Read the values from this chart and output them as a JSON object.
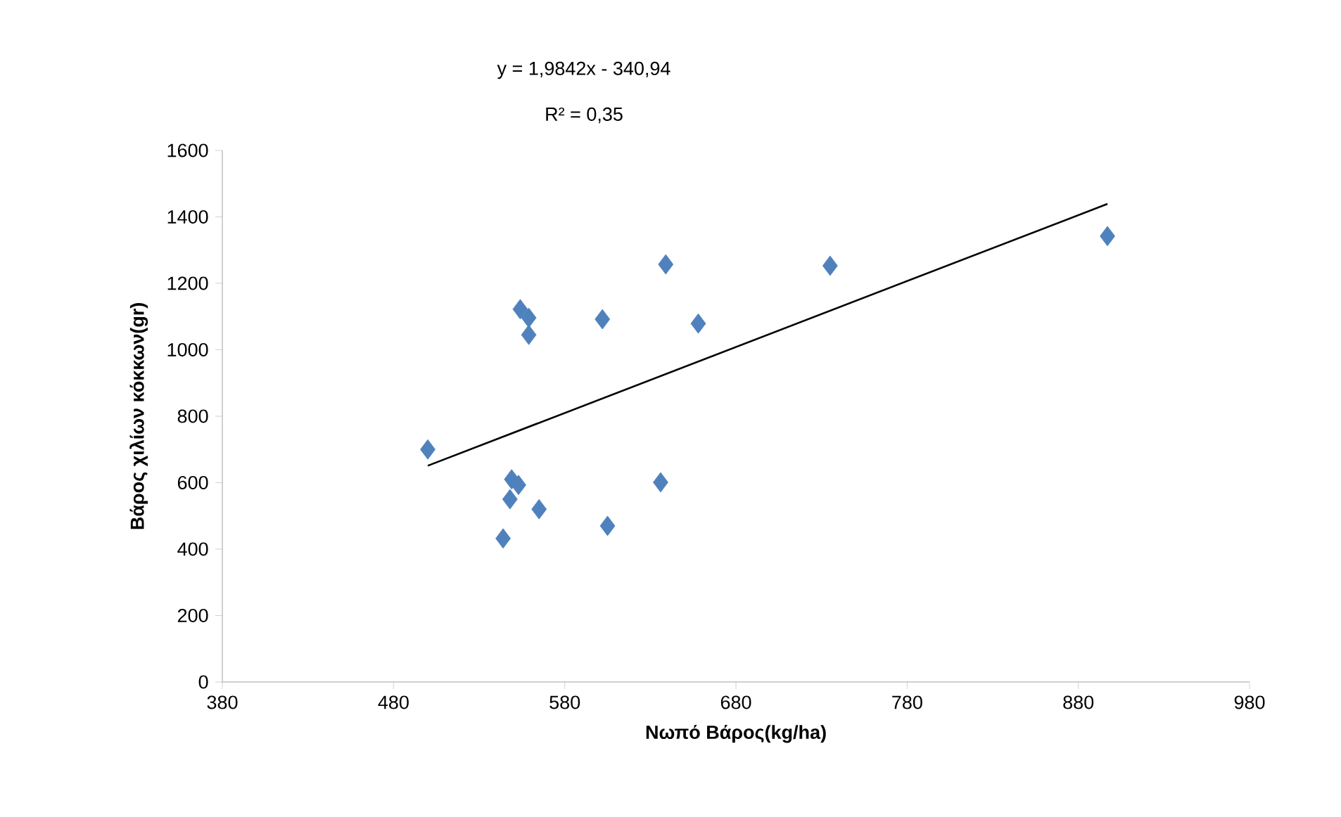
{
  "chart_data": {
    "type": "scatter",
    "xlabel": "Νωπό Βάρος(kg/ha)",
    "ylabel": "Βάρος χιλίων κόκκων(gr)",
    "annotations": [
      "y = 1,9842x - 340,94",
      "R² = 0,35"
    ],
    "xlim": [
      380,
      980
    ],
    "xticks": [
      380,
      480,
      580,
      680,
      780,
      880,
      980
    ],
    "ylim": [
      0,
      1600
    ],
    "yticks": [
      0,
      200,
      400,
      600,
      800,
      1000,
      1200,
      1400,
      1600
    ],
    "grid": false,
    "series": [
      {
        "marker": "diamond",
        "color": "#4f81bd",
        "x": [
          500,
          549,
          553,
          548,
          544,
          554,
          559,
          559,
          565,
          602,
          605,
          636,
          639,
          658,
          735,
          897
        ],
        "values": [
          700,
          610,
          593,
          550,
          432,
          1122,
          1096,
          1045,
          520,
          1092,
          470,
          601,
          1257,
          1079,
          1253,
          1342
        ]
      },
      {
        "type": "line",
        "marker": "none",
        "line_style": "solid",
        "color": "#000000",
        "x": [
          500,
          897
        ],
        "values": [
          651,
          1439
        ]
      }
    ]
  }
}
